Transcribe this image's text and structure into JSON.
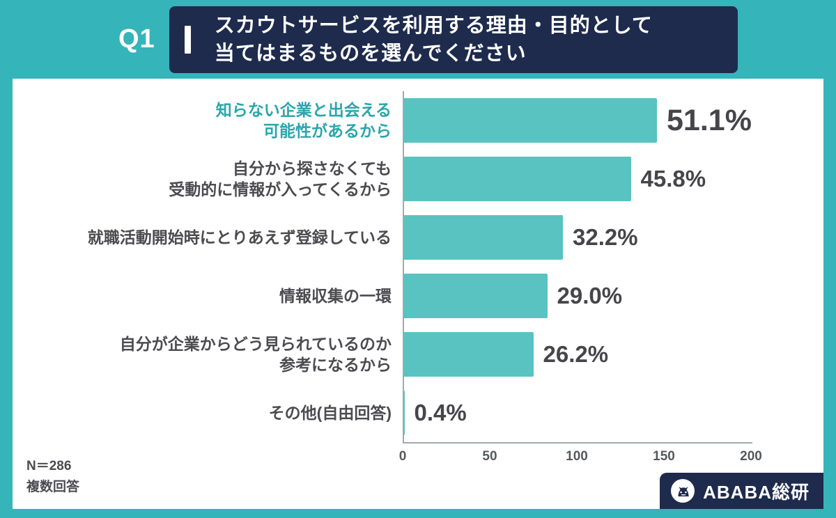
{
  "header": {
    "question_label": "Q1",
    "title_lines": [
      "スカウトサービスを利用する理由・目的として",
      "当てはまるものを選んでください"
    ]
  },
  "chart_data": {
    "type": "bar",
    "orientation": "horizontal",
    "title": "スカウトサービスを利用する理由・目的として当てはまるものを選んでください",
    "axis": {
      "max": 200,
      "ticks": [
        "0",
        "50",
        "100",
        "150",
        "200"
      ]
    },
    "items": [
      {
        "label_lines": [
          "知らない企業と出会える",
          "可能性があるから"
        ],
        "percent": "51.1%",
        "value": 146,
        "highlight": true
      },
      {
        "label_lines": [
          "自分から探さなくても",
          "受動的に情報が入ってくるから"
        ],
        "percent": "45.8%",
        "value": 131,
        "highlight": false
      },
      {
        "label_lines": [
          "就職活動開始時にとりあえず登録している"
        ],
        "percent": "32.2%",
        "value": 92,
        "highlight": false
      },
      {
        "label_lines": [
          "情報収集の一環"
        ],
        "percent": "29.0%",
        "value": 83,
        "highlight": false
      },
      {
        "label_lines": [
          "自分が企業からどう見られているのか",
          "参考になるから"
        ],
        "percent": "26.2%",
        "value": 75,
        "highlight": false
      },
      {
        "label_lines": [
          "その他(自由回答)"
        ],
        "percent": "0.4%",
        "value": 1,
        "highlight": false
      }
    ],
    "bar_color": "#58c3c1",
    "legend": null,
    "grid": false
  },
  "footer": {
    "n_label": "N＝286",
    "answer_note": "複数回答"
  },
  "brand": {
    "name": "ABABA総研"
  }
}
